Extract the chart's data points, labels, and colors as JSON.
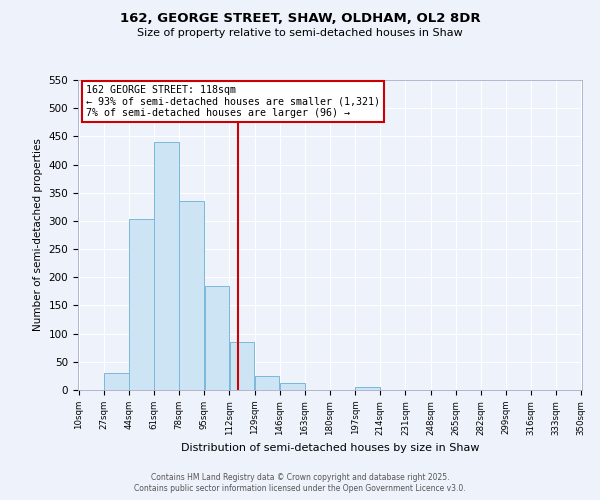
{
  "title": "162, GEORGE STREET, SHAW, OLDHAM, OL2 8DR",
  "subtitle": "Size of property relative to semi-detached houses in Shaw",
  "xlabel": "Distribution of semi-detached houses by size in Shaw",
  "ylabel": "Number of semi-detached properties",
  "bar_edges": [
    10,
    27,
    44,
    61,
    78,
    95,
    112,
    129,
    146,
    163,
    180,
    197,
    214,
    231,
    248,
    265,
    282,
    299,
    316,
    333,
    350
  ],
  "bar_heights": [
    0,
    30,
    303,
    440,
    335,
    185,
    85,
    25,
    13,
    0,
    0,
    6,
    0,
    0,
    0,
    0,
    0,
    0,
    0,
    0
  ],
  "bar_color": "#cce4f4",
  "bar_edge_color": "#7ab8d9",
  "vline_x": 118,
  "vline_color": "#cc0000",
  "annotation_title": "162 GEORGE STREET: 118sqm",
  "annotation_line1": "← 93% of semi-detached houses are smaller (1,321)",
  "annotation_line2": "7% of semi-detached houses are larger (96) →",
  "annotation_box_color": "white",
  "annotation_box_edge": "#cc0000",
  "ylim": [
    0,
    550
  ],
  "yticks": [
    0,
    50,
    100,
    150,
    200,
    250,
    300,
    350,
    400,
    450,
    500,
    550
  ],
  "tick_labels": [
    "10sqm",
    "27sqm",
    "44sqm",
    "61sqm",
    "78sqm",
    "95sqm",
    "112sqm",
    "129sqm",
    "146sqm",
    "163sqm",
    "180sqm",
    "197sqm",
    "214sqm",
    "231sqm",
    "248sqm",
    "265sqm",
    "282sqm",
    "299sqm",
    "316sqm",
    "333sqm",
    "350sqm"
  ],
  "bg_color": "#eef2fb",
  "grid_color": "#ffffff",
  "footer1": "Contains HM Land Registry data © Crown copyright and database right 2025.",
  "footer2": "Contains public sector information licensed under the Open Government Licence v3.0."
}
